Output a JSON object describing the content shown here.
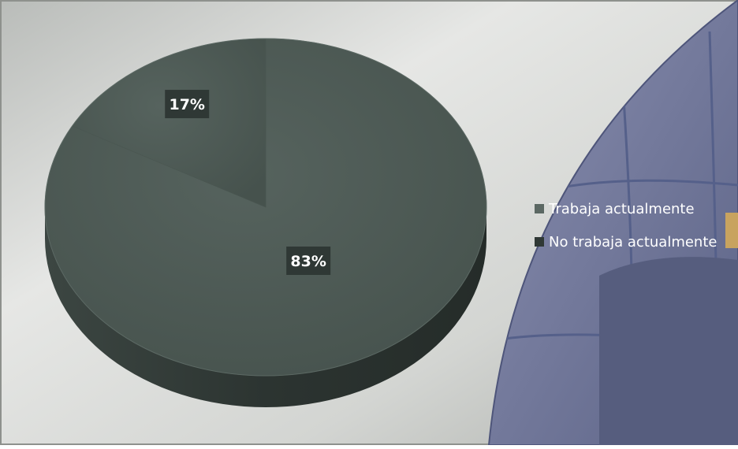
{
  "chart_data": {
    "type": "pie",
    "three_d": true,
    "categories": [
      "Trabaja actualmente",
      "No trabaja actualmente"
    ],
    "values": [
      83,
      17
    ],
    "data_labels": [
      "83%",
      "17%"
    ],
    "legend_position": "right",
    "colors": {
      "slice_top": "#4d5a55",
      "slice_side": "#2f3835",
      "label_box": "#2f3835",
      "label_text": "#ffffff",
      "legend_swatch_1": "#5b6863",
      "legend_swatch_2": "#2f3835",
      "legend_text": "#ffffff",
      "background": "#c9cbc8",
      "globe": "#6d7396"
    }
  }
}
